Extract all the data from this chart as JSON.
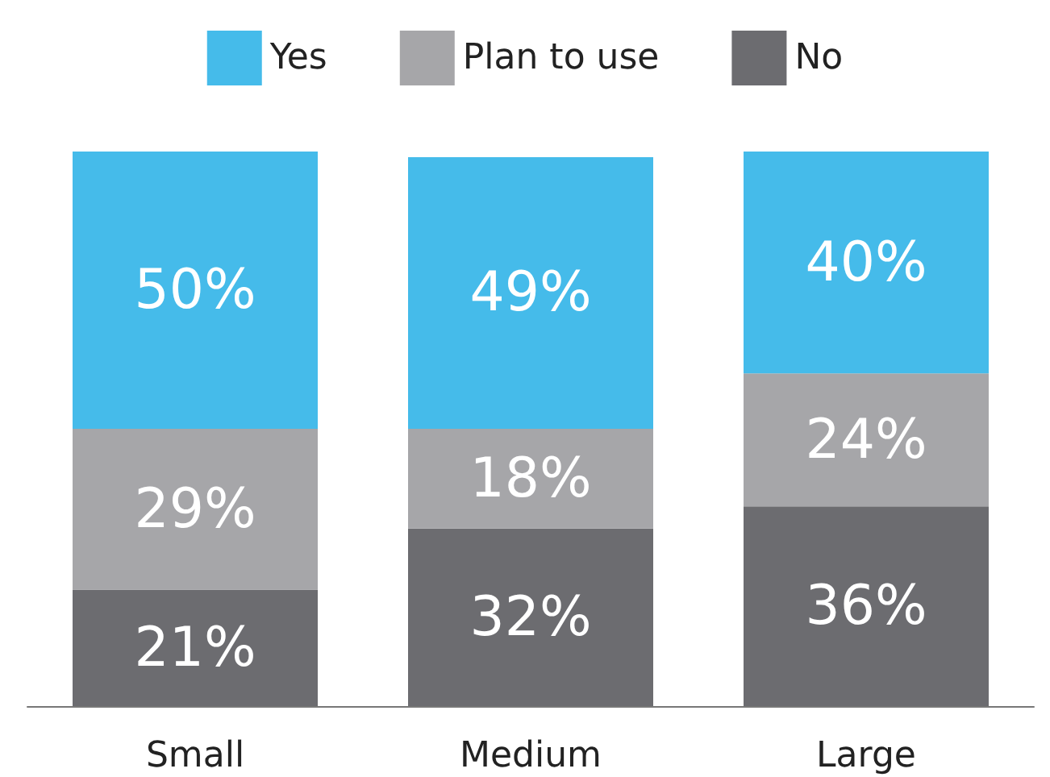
{
  "chart_data": {
    "type": "bar",
    "stacked": true,
    "categories": [
      "Small",
      "Medium",
      "Large"
    ],
    "series": [
      {
        "name": "No",
        "color": "#6c6c70",
        "values": [
          21,
          32,
          36
        ],
        "value_labels": [
          "21%",
          "32%",
          "36%"
        ]
      },
      {
        "name": "Plan to use",
        "color": "#a6a6a9",
        "values": [
          29,
          18,
          24
        ],
        "value_labels": [
          "29%",
          "18%",
          "24%"
        ]
      },
      {
        "name": "Yes",
        "color": "#45bbea",
        "values": [
          50,
          49,
          40
        ],
        "value_labels": [
          "50%",
          "49%",
          "40%"
        ]
      }
    ],
    "legend": "top",
    "tick_labels": "x"
  }
}
